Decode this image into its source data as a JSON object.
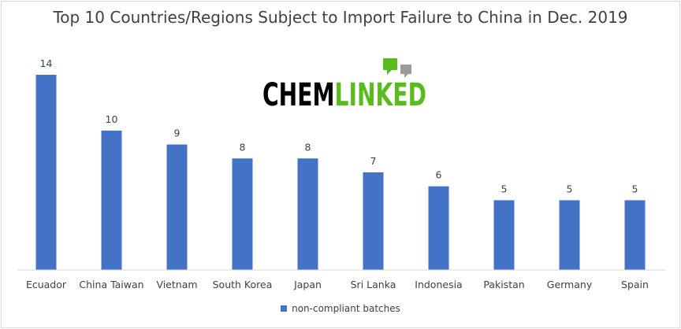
{
  "chart_data": {
    "type": "bar",
    "title": "Top 10 Countries/Regions Subject to Import Failure to China in Dec. 2019",
    "categories": [
      "Ecuador",
      "China Taiwan",
      "Vietnam",
      "South Korea",
      "Japan",
      "Sri Lanka",
      "Indonesia",
      "Pakistan",
      "Germany",
      "Spain"
    ],
    "series": [
      {
        "name": "non-compliant batches",
        "values": [
          14,
          10,
          9,
          8,
          8,
          7,
          6,
          5,
          5,
          5
        ],
        "color": "#4472c4"
      }
    ],
    "ylim": [
      0,
      14
    ],
    "grid": false,
    "legend_position": "bottom",
    "data_labels": true
  },
  "watermark": {
    "text_left": "CHEM",
    "text_right": "LINKED",
    "color_left": "#000000",
    "color_right": "#5bbb1e"
  }
}
